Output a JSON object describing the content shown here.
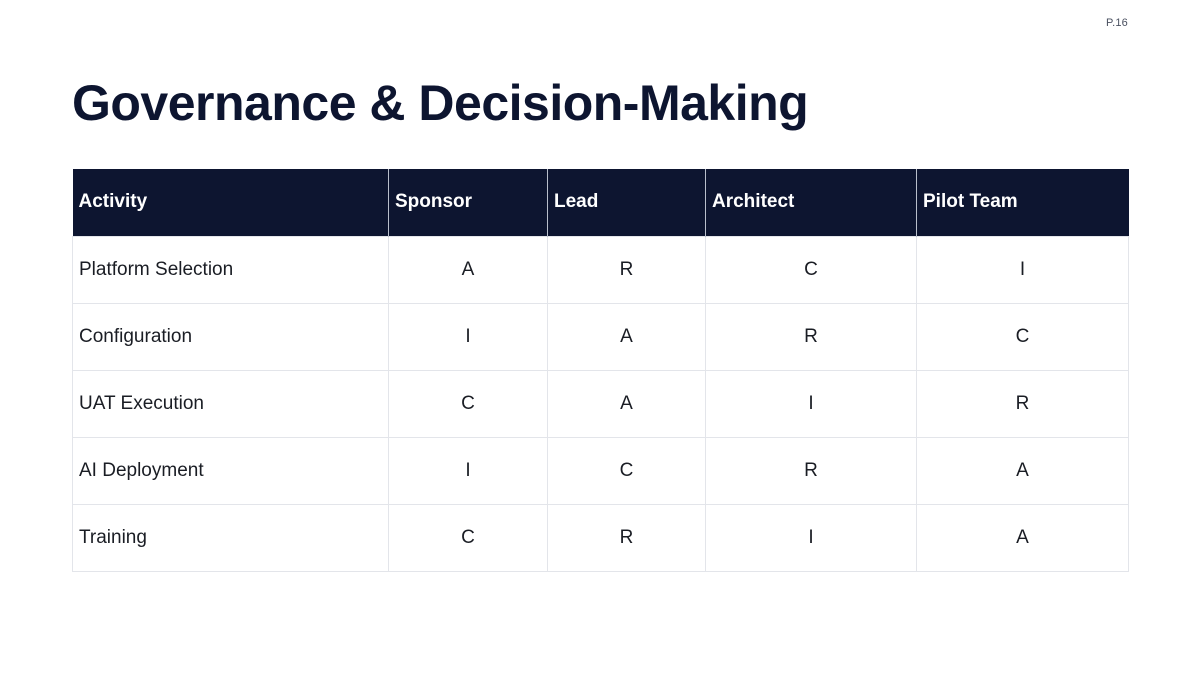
{
  "page": {
    "number": "P.16",
    "title": "Governance & Decision-Making"
  },
  "table": {
    "headers": [
      "Activity",
      "Sponsor",
      "Lead",
      "Architect",
      "Pilot Team"
    ],
    "rows": [
      {
        "activity": "Platform Selection",
        "sponsor": "A",
        "lead": "R",
        "architect": "C",
        "pilot_team": "I"
      },
      {
        "activity": "Configuration",
        "sponsor": "I",
        "lead": "A",
        "architect": "R",
        "pilot_team": "C"
      },
      {
        "activity": "UAT Execution",
        "sponsor": "C",
        "lead": "A",
        "architect": "I",
        "pilot_team": "R"
      },
      {
        "activity": "AI Deployment",
        "sponsor": "I",
        "lead": "C",
        "architect": "R",
        "pilot_team": "A"
      },
      {
        "activity": "Training",
        "sponsor": "C",
        "lead": "R",
        "architect": "I",
        "pilot_team": "A"
      }
    ]
  }
}
